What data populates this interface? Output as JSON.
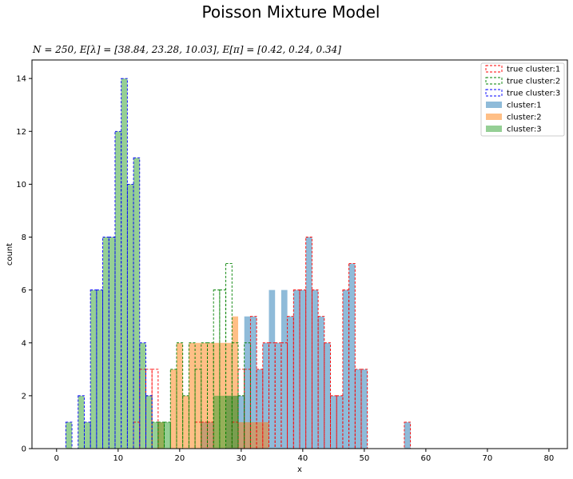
{
  "chart_data": {
    "type": "bar",
    "title": "Poisson Mixture Model",
    "subtitle": "N = 250, E[λ] = [38.84, 23.28, 10.03], E[π] = [0.42, 0.24, 0.34]",
    "xlabel": "x",
    "ylabel": "count",
    "xlim": [
      -4,
      83
    ],
    "ylim": [
      0,
      14.7
    ],
    "xticks": [
      0,
      10,
      20,
      30,
      40,
      50,
      60,
      70,
      80
    ],
    "yticks": [
      0,
      2,
      4,
      6,
      8,
      10,
      12,
      14
    ],
    "bar_width": 1,
    "grid": false,
    "legend_position": "top-right",
    "true_series": [
      {
        "name": "true cluster:1",
        "color": "#ff0000",
        "data": [
          [
            13,
            1
          ],
          [
            14,
            3
          ],
          [
            15,
            3
          ],
          [
            16,
            3
          ],
          [
            23,
            1
          ],
          [
            24,
            1
          ],
          [
            25,
            1
          ],
          [
            29,
            1
          ],
          [
            30,
            3
          ],
          [
            31,
            3
          ],
          [
            32,
            5
          ],
          [
            33,
            3
          ],
          [
            34,
            4
          ],
          [
            35,
            4
          ],
          [
            36,
            4
          ],
          [
            37,
            4
          ],
          [
            38,
            5
          ],
          [
            39,
            6
          ],
          [
            40,
            6
          ],
          [
            41,
            8
          ],
          [
            42,
            6
          ],
          [
            43,
            5
          ],
          [
            44,
            4
          ],
          [
            45,
            2
          ],
          [
            46,
            2
          ],
          [
            47,
            6
          ],
          [
            48,
            7
          ],
          [
            49,
            3
          ],
          [
            50,
            3
          ],
          [
            57,
            1
          ]
        ]
      },
      {
        "name": "true cluster:2",
        "color": "#008000",
        "data": [
          [
            15,
            2
          ],
          [
            16,
            1
          ],
          [
            17,
            1
          ],
          [
            18,
            1
          ],
          [
            19,
            3
          ],
          [
            20,
            4
          ],
          [
            21,
            2
          ],
          [
            22,
            4
          ],
          [
            23,
            3
          ],
          [
            24,
            4
          ],
          [
            25,
            4
          ],
          [
            26,
            6
          ],
          [
            27,
            6
          ],
          [
            28,
            7
          ],
          [
            29,
            4
          ],
          [
            30,
            2
          ],
          [
            31,
            4
          ]
        ]
      },
      {
        "name": "true cluster:3",
        "color": "#0000ff",
        "data": [
          [
            2,
            1
          ],
          [
            4,
            2
          ],
          [
            5,
            1
          ],
          [
            6,
            6
          ],
          [
            7,
            6
          ],
          [
            8,
            8
          ],
          [
            9,
            8
          ],
          [
            10,
            12
          ],
          [
            11,
            14
          ],
          [
            12,
            10
          ],
          [
            13,
            11
          ],
          [
            14,
            4
          ],
          [
            15,
            2
          ]
        ]
      }
    ],
    "series": [
      {
        "name": "cluster:1",
        "color": "#1f77b4",
        "data": [
          [
            24,
            1
          ],
          [
            25,
            1
          ],
          [
            28,
            2
          ],
          [
            29,
            2
          ],
          [
            30,
            2
          ],
          [
            31,
            5
          ],
          [
            32,
            5
          ],
          [
            33,
            3
          ],
          [
            34,
            4
          ],
          [
            35,
            6
          ],
          [
            36,
            4
          ],
          [
            37,
            6
          ],
          [
            38,
            5
          ],
          [
            39,
            6
          ],
          [
            40,
            6
          ],
          [
            41,
            8
          ],
          [
            42,
            6
          ],
          [
            43,
            5
          ],
          [
            44,
            4
          ],
          [
            45,
            2
          ],
          [
            46,
            2
          ],
          [
            47,
            6
          ],
          [
            48,
            7
          ],
          [
            49,
            3
          ],
          [
            50,
            3
          ],
          [
            57,
            1
          ]
        ]
      },
      {
        "name": "cluster:2",
        "color": "#ff7f0e",
        "data": [
          [
            17,
            1
          ],
          [
            19,
            3
          ],
          [
            20,
            4
          ],
          [
            21,
            2
          ],
          [
            22,
            4
          ],
          [
            23,
            4
          ],
          [
            24,
            4
          ],
          [
            25,
            4
          ],
          [
            26,
            4
          ],
          [
            27,
            4
          ],
          [
            28,
            4
          ],
          [
            29,
            5
          ],
          [
            30,
            1
          ],
          [
            31,
            1
          ],
          [
            32,
            1
          ],
          [
            33,
            1
          ],
          [
            34,
            1
          ]
        ]
      },
      {
        "name": "cluster:3",
        "color": "#2ca02c",
        "data": [
          [
            2,
            1
          ],
          [
            4,
            2
          ],
          [
            5,
            1
          ],
          [
            6,
            6
          ],
          [
            7,
            6
          ],
          [
            8,
            8
          ],
          [
            9,
            8
          ],
          [
            10,
            12
          ],
          [
            11,
            14
          ],
          [
            12,
            10
          ],
          [
            13,
            11
          ],
          [
            14,
            4
          ],
          [
            15,
            2
          ],
          [
            16,
            1
          ],
          [
            17,
            1
          ],
          [
            18,
            1
          ],
          [
            26,
            2
          ],
          [
            27,
            2
          ],
          [
            28,
            2
          ],
          [
            29,
            2
          ]
        ]
      }
    ]
  }
}
